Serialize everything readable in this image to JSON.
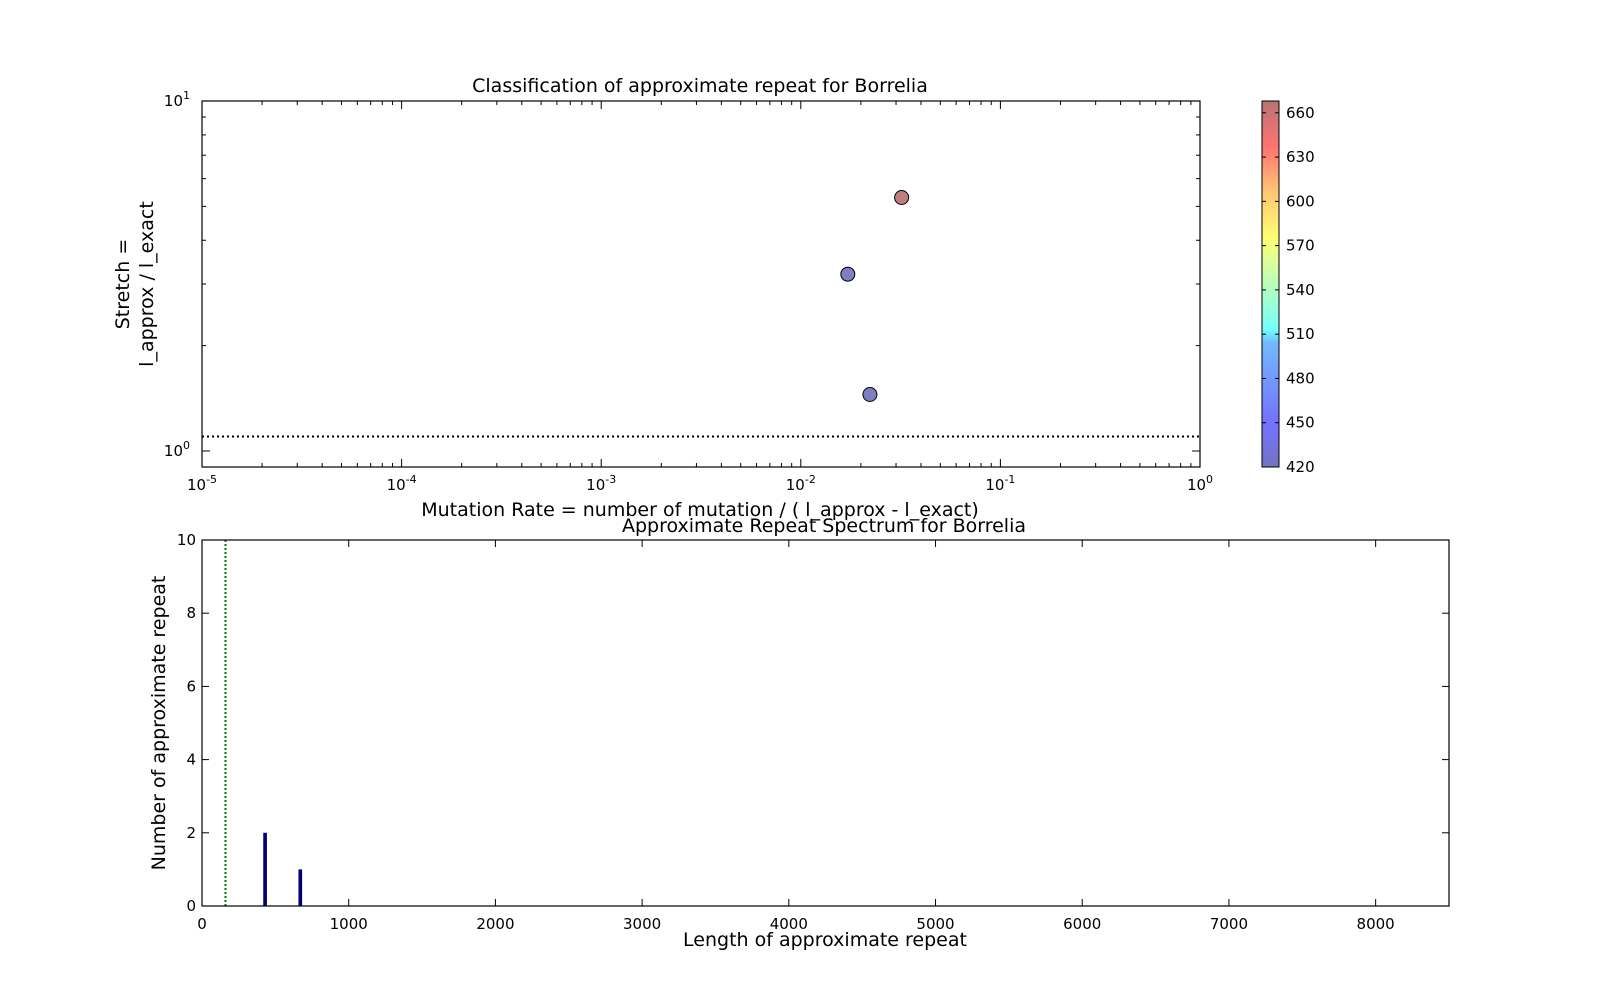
{
  "chart_data": [
    {
      "type": "scatter",
      "title": "Classification of approximate repeat for Borrelia",
      "xlabel": "Mutation Rate = number of mutation / ( l_approx - l_exact)",
      "ylabel_lines": [
        "Stretch =",
        "l_approx / l_exact"
      ],
      "xscale": "log",
      "yscale": "log",
      "xlim": [
        1e-05,
        1
      ],
      "ylim": [
        0.9,
        10
      ],
      "x_tick_labels": [
        {
          "value": 1e-05,
          "base": "10",
          "exp": "-5"
        },
        {
          "value": 0.0001,
          "base": "10",
          "exp": "-4"
        },
        {
          "value": 0.001,
          "base": "10",
          "exp": "-3"
        },
        {
          "value": 0.01,
          "base": "10",
          "exp": "-2"
        },
        {
          "value": 0.1,
          "base": "10",
          "exp": "-1"
        },
        {
          "value": 1,
          "base": "10",
          "exp": "0"
        }
      ],
      "y_tick_labels": [
        {
          "value": 1,
          "base": "10",
          "exp": "0"
        },
        {
          "value": 10,
          "base": "10",
          "exp": "1"
        }
      ],
      "reference_line": {
        "y": 1.1,
        "style": "dotted",
        "color": "#000000"
      },
      "points": [
        {
          "x": 0.032,
          "y": 5.3,
          "c": 668
        },
        {
          "x": 0.0172,
          "y": 3.2,
          "c": 420
        },
        {
          "x": 0.0222,
          "y": 1.45,
          "c": 420
        }
      ],
      "colorbar": {
        "colormap": "jet",
        "alpha": 0.5,
        "range": [
          420,
          668
        ],
        "ticks": [
          "420",
          "450",
          "480",
          "510",
          "540",
          "570",
          "600",
          "630",
          "660"
        ]
      },
      "grid": false,
      "legend": "none"
    },
    {
      "type": "bar",
      "title": "Approximate Repeat Spectrum for Borrelia",
      "xlabel": "Length of approximate repeat",
      "ylabel": "Number of approximate repeat",
      "xlim": [
        0,
        8500
      ],
      "ylim": [
        0,
        10
      ],
      "x_ticks": [
        "0",
        "1000",
        "2000",
        "3000",
        "4000",
        "5000",
        "6000",
        "7000",
        "8000"
      ],
      "y_ticks": [
        "0",
        "2",
        "4",
        "6",
        "8",
        "10"
      ],
      "bars": [
        {
          "x": 430,
          "width": 25,
          "value": 2
        },
        {
          "x": 670,
          "width": 25,
          "value": 1
        }
      ],
      "bar_color": "#00006e",
      "reference_line": {
        "x": 160,
        "style": "dotted",
        "color": "#008000"
      },
      "grid": false,
      "legend": "none"
    }
  ]
}
